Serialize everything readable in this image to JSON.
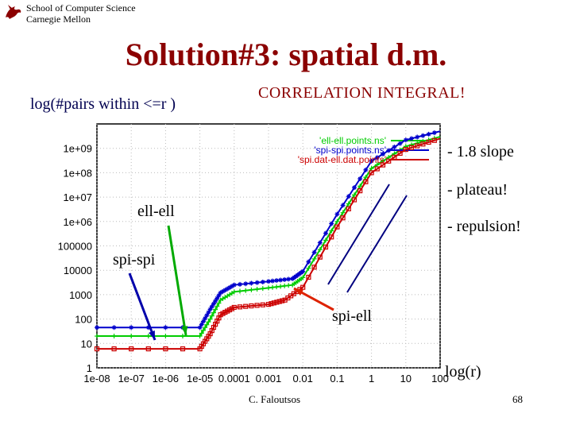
{
  "header": {
    "school_line1": "School of Computer Science",
    "school_line2": "Carnegie Mellon",
    "logo_icon": "griffin-logo-icon"
  },
  "slide": {
    "title": "Solution#3: spatial d.m.",
    "y_axis_label": "log(#pairs within <=r )",
    "correlation_note": "CORRELATION INTEGRAL!",
    "notes": [
      "- 1.8 slope",
      "- plateau!",
      "- repulsion!"
    ],
    "annotations": {
      "ell_ell": "ell-ell",
      "spi_spi": "spi-spi",
      "spi_ell": "spi-ell"
    },
    "x_axis_label": "log(r)",
    "footer": "C. Faloutsos",
    "page_number": "68"
  },
  "chart_data": {
    "type": "line",
    "x_scale": "log",
    "y_scale": "log",
    "xlim": [
      1e-08,
      100
    ],
    "ylim": [
      1,
      10000000000.0
    ],
    "grid": true,
    "legend_position": "top-right",
    "x_ticks": [
      "1e-08",
      "1e-07",
      "1e-06",
      "1e-05",
      "0.0001",
      "0.001",
      "0.01",
      "0.1",
      "1",
      "10",
      "100"
    ],
    "y_ticks": [
      "1",
      "10",
      "100",
      "1000",
      "10000",
      "100000",
      "1e+06",
      "1e+07",
      "1e+08",
      "1e+09"
    ],
    "series": [
      {
        "name": "'ell-ell.points.ns'",
        "color": "#00cc00",
        "marker": "plus",
        "x": [
          1e-08,
          1e-05,
          2e-05,
          4e-05,
          0.0001,
          0.001,
          0.005,
          0.01,
          0.1,
          1,
          10,
          100
        ],
        "y": [
          20,
          20,
          100,
          600,
          1300,
          1900,
          2500,
          5000,
          1000000.0,
          150000000.0,
          1200000000.0,
          3000000000.0
        ]
      },
      {
        "name": "'spi-spi.points.ns'",
        "color": "#0000cc",
        "marker": "star",
        "x": [
          1e-08,
          1e-05,
          2e-05,
          4e-05,
          0.0001,
          0.001,
          0.005,
          0.01,
          0.1,
          1,
          10,
          100
        ],
        "y": [
          45,
          45,
          250,
          1200,
          2500,
          3500,
          4500,
          9000,
          2000000.0,
          300000000.0,
          2200000000.0,
          5000000000.0
        ]
      },
      {
        "name": "'spi.dat-ell.dat.points'",
        "color": "#cc0000",
        "marker": "square",
        "x": [
          1e-08,
          1e-05,
          2e-05,
          4e-05,
          0.0001,
          0.001,
          0.003,
          0.01,
          0.1,
          1,
          10,
          100
        ],
        "y": [
          6,
          6,
          25,
          150,
          300,
          400,
          600,
          2000,
          600000.0,
          100000000.0,
          900000000.0,
          2500000000.0
        ]
      }
    ]
  }
}
